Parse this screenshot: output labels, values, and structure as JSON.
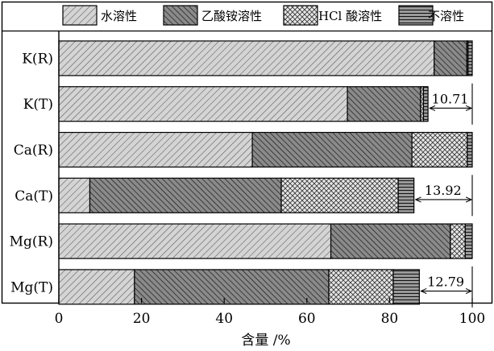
{
  "chart_data": {
    "type": "bar",
    "orientation": "horizontal",
    "stacked": true,
    "categories": [
      "K(R)",
      "K(T)",
      "Ca(R)",
      "Ca(T)",
      "Mg(R)",
      "Mg(T)"
    ],
    "series": [
      {
        "name": "水溶性",
        "pattern": "diag-light",
        "values": [
          90.8,
          69.8,
          46.8,
          7.5,
          65.8,
          18.3
        ]
      },
      {
        "name": "乙酸铵溶性",
        "pattern": "diag-dark",
        "values": [
          7.9,
          17.7,
          38.6,
          46.3,
          28.9,
          47.0
        ]
      },
      {
        "name": "HCl 酸溶性",
        "pattern": "cross",
        "values": [
          0.3,
          0.7,
          13.4,
          28.3,
          3.6,
          15.6
        ]
      },
      {
        "name": "不溶性",
        "pattern": "horizontal",
        "values": [
          1.0,
          1.1,
          1.2,
          3.8,
          1.7,
          6.3
        ]
      }
    ],
    "annotations": [
      {
        "category": "K(T)",
        "text": "10.71"
      },
      {
        "category": "Ca(T)",
        "text": "13.92"
      },
      {
        "category": "Mg(T)",
        "text": "12.79"
      }
    ],
    "xlabel": "含量 /%",
    "ylabel": "",
    "xlim": [
      0,
      100
    ],
    "xticks": [
      0,
      20,
      40,
      60,
      80,
      100
    ],
    "legend_position": "top",
    "grid": false
  }
}
